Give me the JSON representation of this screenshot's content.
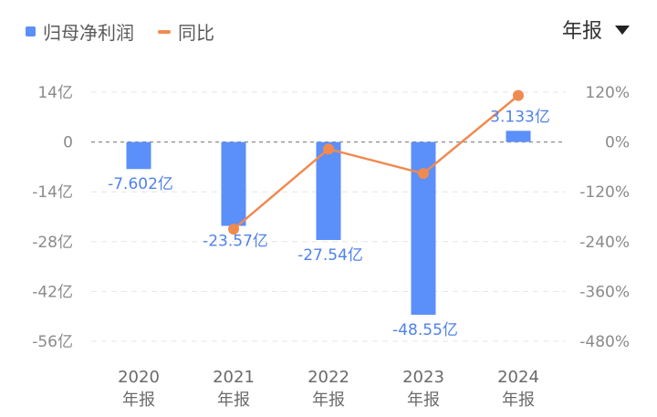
{
  "legend": {
    "bar_label": "归母净利润",
    "line_label": "同比"
  },
  "period_selector": {
    "value": "年报"
  },
  "colors": {
    "bar": "#5b8ff9",
    "line": "#f08a50",
    "grid": "#e6e6e6",
    "zero_line": "#8c8c8c"
  },
  "chart_data": {
    "type": "bar",
    "categories": [
      [
        "2020",
        "年报"
      ],
      [
        "2021",
        "年报"
      ],
      [
        "2022",
        "年报"
      ],
      [
        "2023",
        "年报"
      ],
      [
        "2024",
        "年报"
      ]
    ],
    "series": [
      {
        "name": "归母净利润",
        "type": "bar",
        "axis": "left",
        "values": [
          -7.602,
          -23.57,
          -27.54,
          -48.55,
          3.133
        ],
        "labels": [
          "-7.602亿",
          "-23.57亿",
          "-27.54亿",
          "-48.55亿",
          "3.133亿"
        ]
      },
      {
        "name": "同比",
        "type": "line",
        "axis": "right",
        "values": [
          null,
          -210,
          -17,
          -76,
          112
        ]
      }
    ],
    "y_left": {
      "ticks": [
        14,
        0,
        -14,
        -28,
        -42,
        -56
      ],
      "tick_labels": [
        "14亿",
        "0",
        "-14亿",
        "-28亿",
        "-42亿",
        "-56亿"
      ],
      "range": [
        -56,
        14
      ]
    },
    "y_right": {
      "ticks": [
        120,
        0,
        -120,
        -240,
        -360,
        -480
      ],
      "tick_labels": [
        "120%",
        "0%",
        "-120%",
        "-240%",
        "-360%",
        "-480%"
      ],
      "range": [
        -480,
        120
      ]
    },
    "grid": true,
    "legend_position": "top-left"
  }
}
